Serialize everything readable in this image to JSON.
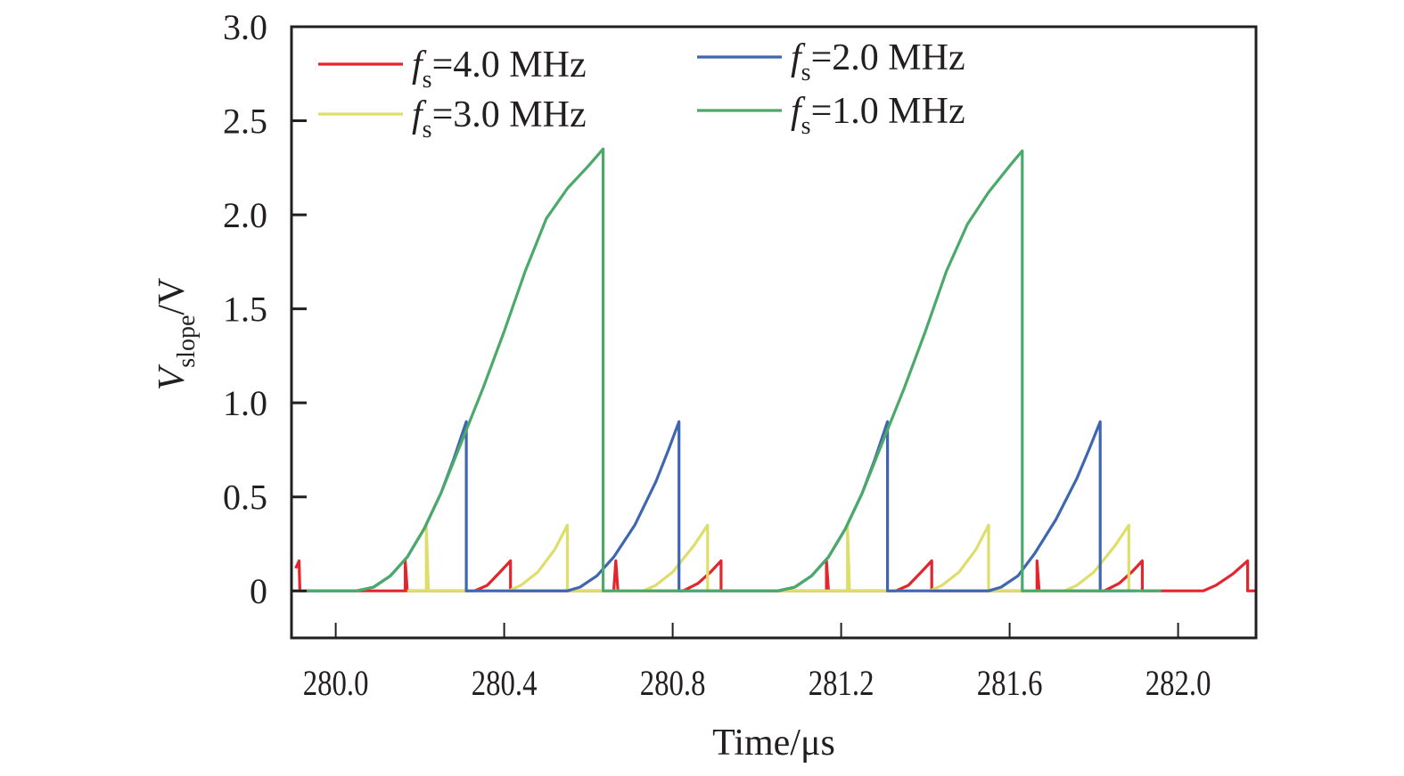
{
  "chart_data": {
    "type": "line",
    "title": "",
    "xlabel": "Time/μs",
    "ylabel_main": "V",
    "ylabel_sub": "slope",
    "ylabel_unit": "/V",
    "xlim": [
      279.895,
      282.185
    ],
    "ylim": [
      -0.25,
      3.0
    ],
    "xticks": [
      280.0,
      280.4,
      280.8,
      281.2,
      281.6,
      282.0
    ],
    "xtick_labels": [
      "280.0",
      "280.4",
      "280.8",
      "281.2",
      "281.6",
      "282.0"
    ],
    "yticks": [
      0,
      0.5,
      1.0,
      1.5,
      2.0,
      2.5,
      3.0
    ],
    "ytick_labels": [
      "0",
      "0.5",
      "1.0",
      "1.5",
      "2.0",
      "2.5",
      "3.0"
    ],
    "grid": false,
    "legend_position": "top",
    "series": [
      {
        "name": "fs=4.0 MHz",
        "legend_prefix": "f",
        "legend_sub": "s",
        "legend_suffix": "=4.0 MHz",
        "color": "#e3262d",
        "points": [
          [
            279.905,
            0.12
          ],
          [
            279.913,
            0.16
          ],
          [
            279.915,
            0.0
          ],
          [
            279.93,
            0.0
          ],
          [
            280.165,
            0.0
          ],
          [
            280.165,
            0.16
          ],
          [
            280.17,
            0.0
          ],
          [
            280.215,
            0.0
          ],
          [
            280.33,
            0.0
          ],
          [
            280.36,
            0.03
          ],
          [
            280.39,
            0.1
          ],
          [
            280.415,
            0.16
          ],
          [
            280.415,
            0.0
          ],
          [
            280.66,
            0.0
          ],
          [
            280.665,
            0.16
          ],
          [
            280.67,
            0.0
          ],
          [
            280.825,
            0.0
          ],
          [
            280.86,
            0.04
          ],
          [
            280.89,
            0.1
          ],
          [
            280.915,
            0.16
          ],
          [
            280.915,
            0.0
          ],
          [
            281.165,
            0.0
          ],
          [
            281.165,
            0.16
          ],
          [
            281.17,
            0.0
          ],
          [
            281.215,
            0.0
          ],
          [
            281.33,
            0.0
          ],
          [
            281.36,
            0.03
          ],
          [
            281.39,
            0.1
          ],
          [
            281.415,
            0.16
          ],
          [
            281.415,
            0.0
          ],
          [
            281.665,
            0.0
          ],
          [
            281.665,
            0.16
          ],
          [
            281.67,
            0.0
          ],
          [
            281.825,
            0.0
          ],
          [
            281.86,
            0.04
          ],
          [
            281.89,
            0.1
          ],
          [
            281.915,
            0.16
          ],
          [
            281.915,
            0.0
          ],
          [
            282.06,
            0.0
          ],
          [
            282.09,
            0.03
          ],
          [
            282.13,
            0.09
          ],
          [
            282.165,
            0.16
          ],
          [
            282.165,
            0.0
          ],
          [
            282.185,
            0.0
          ]
        ]
      },
      {
        "name": "fs=3.0 MHz",
        "legend_prefix": "f",
        "legend_sub": "s",
        "legend_suffix": "=3.0 MHz",
        "color": "#dede6a",
        "points": [
          [
            280.17,
            0.0
          ],
          [
            280.215,
            0.0
          ],
          [
            280.215,
            0.35
          ],
          [
            280.22,
            0.0
          ],
          [
            280.41,
            0.0
          ],
          [
            280.44,
            0.03
          ],
          [
            280.48,
            0.1
          ],
          [
            280.52,
            0.22
          ],
          [
            280.55,
            0.35
          ],
          [
            280.55,
            0.0
          ],
          [
            280.73,
            0.0
          ],
          [
            280.76,
            0.03
          ],
          [
            280.8,
            0.1
          ],
          [
            280.85,
            0.24
          ],
          [
            280.883,
            0.35
          ],
          [
            280.883,
            0.0
          ],
          [
            281.17,
            0.0
          ],
          [
            281.215,
            0.0
          ],
          [
            281.215,
            0.35
          ],
          [
            281.22,
            0.0
          ],
          [
            281.41,
            0.0
          ],
          [
            281.44,
            0.03
          ],
          [
            281.48,
            0.1
          ],
          [
            281.52,
            0.22
          ],
          [
            281.55,
            0.35
          ],
          [
            281.55,
            0.0
          ],
          [
            281.73,
            0.0
          ],
          [
            281.76,
            0.03
          ],
          [
            281.8,
            0.1
          ],
          [
            281.85,
            0.24
          ],
          [
            281.883,
            0.35
          ],
          [
            281.883,
            0.0
          ]
        ]
      },
      {
        "name": "fs=2.0 MHz",
        "legend_prefix": "f",
        "legend_sub": "s",
        "legend_suffix": "=2.0 MHz",
        "color": "#3f67b1",
        "points": [
          [
            279.93,
            0.0
          ],
          [
            280.05,
            0.0
          ],
          [
            280.09,
            0.02
          ],
          [
            280.13,
            0.08
          ],
          [
            280.17,
            0.18
          ],
          [
            280.21,
            0.33
          ],
          [
            280.25,
            0.52
          ],
          [
            280.28,
            0.7
          ],
          [
            280.31,
            0.9
          ],
          [
            280.31,
            0.0
          ],
          [
            280.55,
            0.0
          ],
          [
            280.58,
            0.02
          ],
          [
            280.62,
            0.08
          ],
          [
            280.66,
            0.18
          ],
          [
            280.71,
            0.35
          ],
          [
            280.76,
            0.58
          ],
          [
            280.79,
            0.75
          ],
          [
            280.815,
            0.9
          ],
          [
            280.815,
            0.0
          ],
          [
            281.05,
            0.0
          ],
          [
            281.09,
            0.02
          ],
          [
            281.13,
            0.08
          ],
          [
            281.17,
            0.18
          ],
          [
            281.21,
            0.33
          ],
          [
            281.25,
            0.52
          ],
          [
            281.28,
            0.7
          ],
          [
            281.31,
            0.9
          ],
          [
            281.31,
            0.0
          ],
          [
            281.55,
            0.0
          ],
          [
            281.58,
            0.02
          ],
          [
            281.62,
            0.08
          ],
          [
            281.66,
            0.2
          ],
          [
            281.71,
            0.38
          ],
          [
            281.76,
            0.6
          ],
          [
            281.79,
            0.76
          ],
          [
            281.815,
            0.9
          ],
          [
            281.815,
            0.0
          ],
          [
            281.9,
            0.0
          ]
        ]
      },
      {
        "name": "fs=1.0 MHz",
        "legend_prefix": "f",
        "legend_sub": "s",
        "legend_suffix": "=1.0 MHz",
        "color": "#4ba96a",
        "points": [
          [
            279.855,
            0.0
          ],
          [
            280.05,
            0.0
          ],
          [
            280.09,
            0.02
          ],
          [
            280.13,
            0.08
          ],
          [
            280.17,
            0.18
          ],
          [
            280.21,
            0.33
          ],
          [
            280.25,
            0.52
          ],
          [
            280.3,
            0.8
          ],
          [
            280.35,
            1.08
          ],
          [
            280.4,
            1.38
          ],
          [
            280.45,
            1.7
          ],
          [
            280.5,
            1.98
          ],
          [
            280.55,
            2.14
          ],
          [
            280.6,
            2.26
          ],
          [
            280.635,
            2.35
          ],
          [
            280.635,
            0.0
          ],
          [
            281.05,
            0.0
          ],
          [
            281.09,
            0.02
          ],
          [
            281.13,
            0.08
          ],
          [
            281.17,
            0.18
          ],
          [
            281.21,
            0.33
          ],
          [
            281.25,
            0.52
          ],
          [
            281.3,
            0.8
          ],
          [
            281.35,
            1.08
          ],
          [
            281.4,
            1.38
          ],
          [
            281.45,
            1.7
          ],
          [
            281.5,
            1.95
          ],
          [
            281.55,
            2.12
          ],
          [
            281.6,
            2.26
          ],
          [
            281.63,
            2.34
          ],
          [
            281.63,
            0.0
          ],
          [
            281.96,
            0.0
          ]
        ]
      }
    ]
  }
}
